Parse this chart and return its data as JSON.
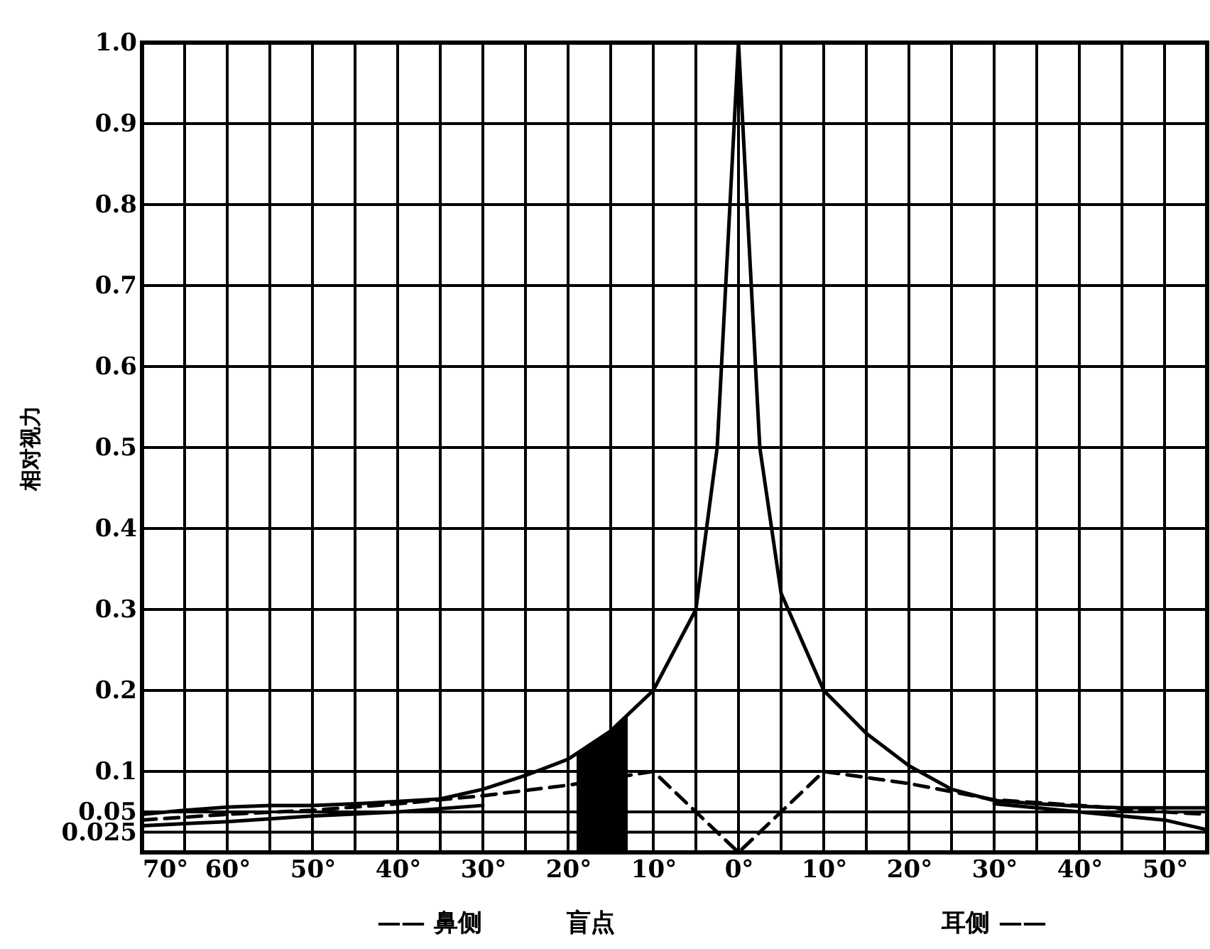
{
  "chart_data": {
    "type": "line",
    "ylabel": "相对视力",
    "xlim": [
      -70,
      55
    ],
    "ylim": [
      0,
      1.0
    ],
    "xticks": [
      {
        "value": -70,
        "label": "70°"
      },
      {
        "value": -65,
        "label": null
      },
      {
        "value": -60,
        "label": "60°"
      },
      {
        "value": -55,
        "label": null
      },
      {
        "value": -50,
        "label": "50°"
      },
      {
        "value": -45,
        "label": null
      },
      {
        "value": -40,
        "label": "40°"
      },
      {
        "value": -35,
        "label": null
      },
      {
        "value": -30,
        "label": "30°"
      },
      {
        "value": -25,
        "label": null
      },
      {
        "value": -20,
        "label": "20°"
      },
      {
        "value": -15,
        "label": null
      },
      {
        "value": -10,
        "label": "10°"
      },
      {
        "value": -5,
        "label": null
      },
      {
        "value": 0,
        "label": "0°"
      },
      {
        "value": 5,
        "label": null
      },
      {
        "value": 10,
        "label": "10°"
      },
      {
        "value": 15,
        "label": null
      },
      {
        "value": 20,
        "label": "20°"
      },
      {
        "value": 25,
        "label": null
      },
      {
        "value": 30,
        "label": "30°"
      },
      {
        "value": 35,
        "label": null
      },
      {
        "value": 40,
        "label": "40°"
      },
      {
        "value": 45,
        "label": null
      },
      {
        "value": 50,
        "label": "50°"
      }
    ],
    "yticks": [
      0.025,
      0.05,
      0.1,
      0.2,
      0.3,
      0.4,
      0.5,
      0.6,
      0.7,
      0.8,
      0.9,
      {
        "value": 1.0,
        "label": "1.0"
      }
    ],
    "grid": true,
    "legend": false,
    "marker": "none",
    "series": [
      {
        "color": "#000000",
        "line_style": "solid",
        "x": [
          -70,
          -65,
          -60,
          -55,
          -50,
          -45,
          -40,
          -35,
          -30,
          -25,
          -20,
          -15,
          -10,
          -5,
          -2.5,
          0,
          2.5,
          5,
          10,
          15,
          20,
          25,
          30,
          35,
          40,
          45,
          50,
          55
        ],
        "values": [
          0.047,
          0.052,
          0.056,
          0.058,
          0.058,
          0.06,
          0.063,
          0.066,
          0.078,
          0.095,
          0.115,
          0.15,
          0.2,
          0.3,
          0.5,
          1.0,
          0.5,
          0.32,
          0.2,
          0.147,
          0.107,
          0.078,
          0.064,
          0.06,
          0.057,
          0.055,
          0.055,
          0.055
        ]
      },
      {
        "color": "#000000",
        "line_style": "dashed",
        "x": [
          -70,
          -60,
          -50,
          -40,
          -30,
          -20,
          -10,
          0,
          10,
          20,
          30,
          40,
          50,
          55
        ],
        "values": [
          0.04,
          0.047,
          0.052,
          0.06,
          0.07,
          0.083,
          0.1,
          0,
          0.1,
          0.085,
          0.065,
          0.058,
          0.05,
          0.047
        ]
      },
      {
        "color": "#000000",
        "line_style": "solid",
        "x": [
          -70,
          -60,
          -50,
          -40,
          -30,
          0,
          30,
          40,
          50,
          55
        ],
        "values": [
          0.033,
          0.038,
          0.045,
          0.05,
          0.058,
          null,
          0.06,
          0.05,
          0.04,
          0.028
        ]
      }
    ],
    "bands": [
      {
        "axis": "x",
        "from": -19,
        "to": -13,
        "label": "盲点",
        "color": "#000000"
      }
    ],
    "annotations": [
      "—— 鼻侧",
      "耳侧 ——"
    ]
  }
}
